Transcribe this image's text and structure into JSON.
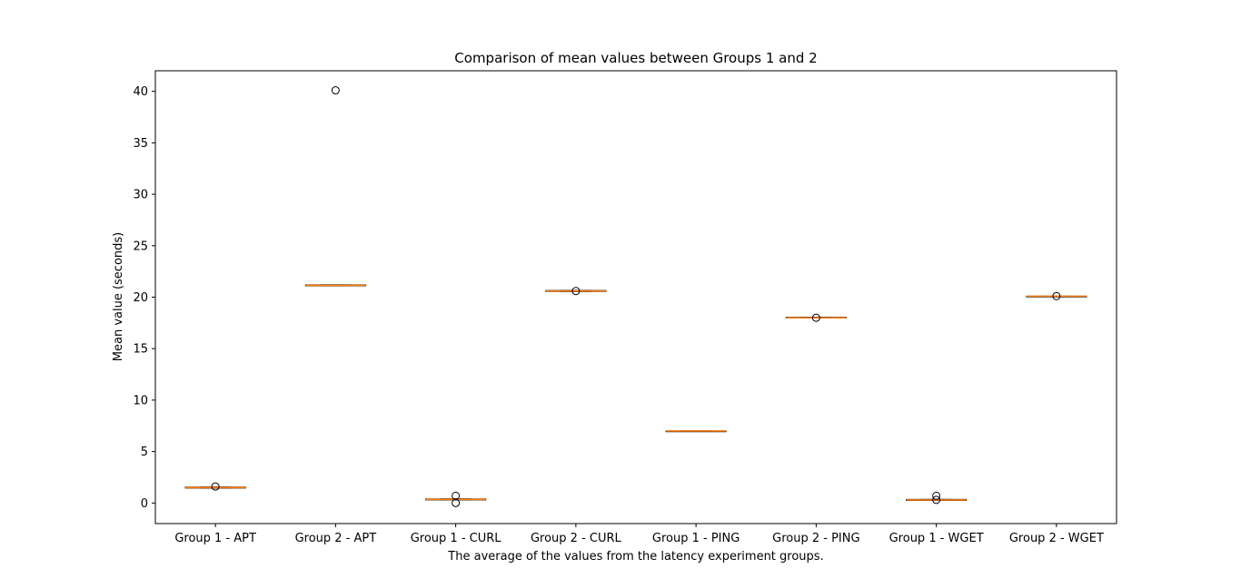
{
  "chart_data": {
    "type": "box",
    "title": "Comparison of mean values between Groups 1 and 2",
    "xlabel": "The average of the values from the latency experiment groups.",
    "ylabel": "Mean value (seconds)",
    "ylim": [
      -2,
      42
    ],
    "yticks": [
      0,
      5,
      10,
      15,
      20,
      25,
      30,
      35,
      40
    ],
    "grid": false,
    "categories": [
      "Group 1 - APT",
      "Group 2 - APT",
      "Group 1 - CURL",
      "Group 2 - CURL",
      "Group 1 - PING",
      "Group 2 - PING",
      "Group 1 - WGET",
      "Group 2 - WGET"
    ],
    "boxes": [
      {
        "q1": 1.45,
        "median": 1.5,
        "q3": 1.55,
        "whisker_low": 1.45,
        "whisker_high": 1.55,
        "outliers": [
          1.6
        ]
      },
      {
        "q1": 21.1,
        "median": 21.15,
        "q3": 21.2,
        "whisker_low": 21.1,
        "whisker_high": 21.2,
        "outliers": [
          40.1
        ]
      },
      {
        "q1": 0.3,
        "median": 0.35,
        "q3": 0.4,
        "whisker_low": 0.3,
        "whisker_high": 0.4,
        "outliers": [
          0.7,
          0.0
        ]
      },
      {
        "q1": 20.55,
        "median": 20.6,
        "q3": 20.65,
        "whisker_low": 20.55,
        "whisker_high": 20.65,
        "outliers": [
          20.6
        ]
      },
      {
        "q1": 7.0,
        "median": 7.0,
        "q3": 7.0,
        "whisker_low": 7.0,
        "whisker_high": 7.0,
        "outliers": []
      },
      {
        "q1": 18.0,
        "median": 18.0,
        "q3": 18.05,
        "whisker_low": 18.0,
        "whisker_high": 18.05,
        "outliers": [
          18.0
        ]
      },
      {
        "q1": 0.25,
        "median": 0.3,
        "q3": 0.35,
        "whisker_low": 0.25,
        "whisker_high": 0.35,
        "outliers": [
          0.7,
          0.3
        ]
      },
      {
        "q1": 20.05,
        "median": 20.1,
        "q3": 20.1,
        "whisker_low": 20.05,
        "whisker_high": 20.1,
        "outliers": [
          20.1
        ]
      }
    ],
    "colors": {
      "box": "#000000",
      "median": "#ff7f0e",
      "outlier": "#000000"
    }
  }
}
